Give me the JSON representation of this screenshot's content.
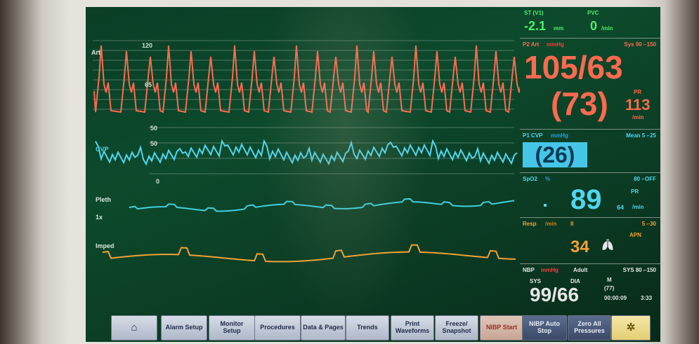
{
  "status": {
    "st_label": "ST (V1)",
    "st_value": "-2.1",
    "st_unit": "mm",
    "pvc_label": "PVC",
    "pvc_value": "0",
    "pvc_unit": "/min"
  },
  "waves": {
    "art_label": "Art",
    "art_scale_top": "120",
    "art_scale_mid": "65",
    "cvp_scale_a": "50",
    "cvp_scale_b": "50",
    "cvp_label": "CVP",
    "cvp_scale_zero": "0",
    "pleth_label": "Pleth",
    "pleth_gain": "1x",
    "imped_label": "Imped"
  },
  "art": {
    "label": "P2 Art",
    "unit": "mmHg",
    "alarm": "Sys 90 ⌐150",
    "value": "105/63",
    "mean": "(73)",
    "pr_label": "PR",
    "pr_value": "113",
    "pr_unit": "/min"
  },
  "cvp": {
    "label": "P1 CVP",
    "unit": "mmHg",
    "alarm": "Mean 5 ⌐25",
    "value": "(26)"
  },
  "spo2": {
    "label": "SpO2",
    "unit": "%",
    "alarm": "80 ⌐OFF",
    "value": "89",
    "pr_label": "PR",
    "pr_value": "64",
    "pr_unit": "/min"
  },
  "resp": {
    "label": "Resp",
    "unit": "/min",
    "ii": "II",
    "alarm": "5 ⌐30",
    "apn": "APN",
    "value": "34"
  },
  "nbp": {
    "label": "NBP",
    "unit": "mmHg",
    "mode": "Adult",
    "alarm": "SYS 80 ⌐150",
    "sys_label": "SYS",
    "dia_label": "DIA",
    "m_label": "M",
    "value": "99/66",
    "mean": "(77)",
    "elapsed": "00:00:09",
    "time": "3:33"
  },
  "buttons": {
    "home": "⌂",
    "alarm_setup": "Alarm Setup",
    "monitor_setup": "Monitor Setup",
    "procedures": "Procedures",
    "data_pages": "Data & Pages",
    "trends": "Trends",
    "print_waveforms": "Print Waveforms",
    "freeze_snapshot": "Freeze/ Snapshot",
    "nibp_start": "NIBP Start",
    "nibp_auto_stop": "NIBP Auto Stop",
    "zero_all": "Zero All Pressures",
    "silence": "✲"
  },
  "colors": {
    "art": "#ff6a4f",
    "cvp": "#4fd6ef",
    "pleth": "#3fd0e0",
    "imped": "#f2a233",
    "ecg_green": "#4df06a",
    "panel_border": "#7d8f85"
  }
}
